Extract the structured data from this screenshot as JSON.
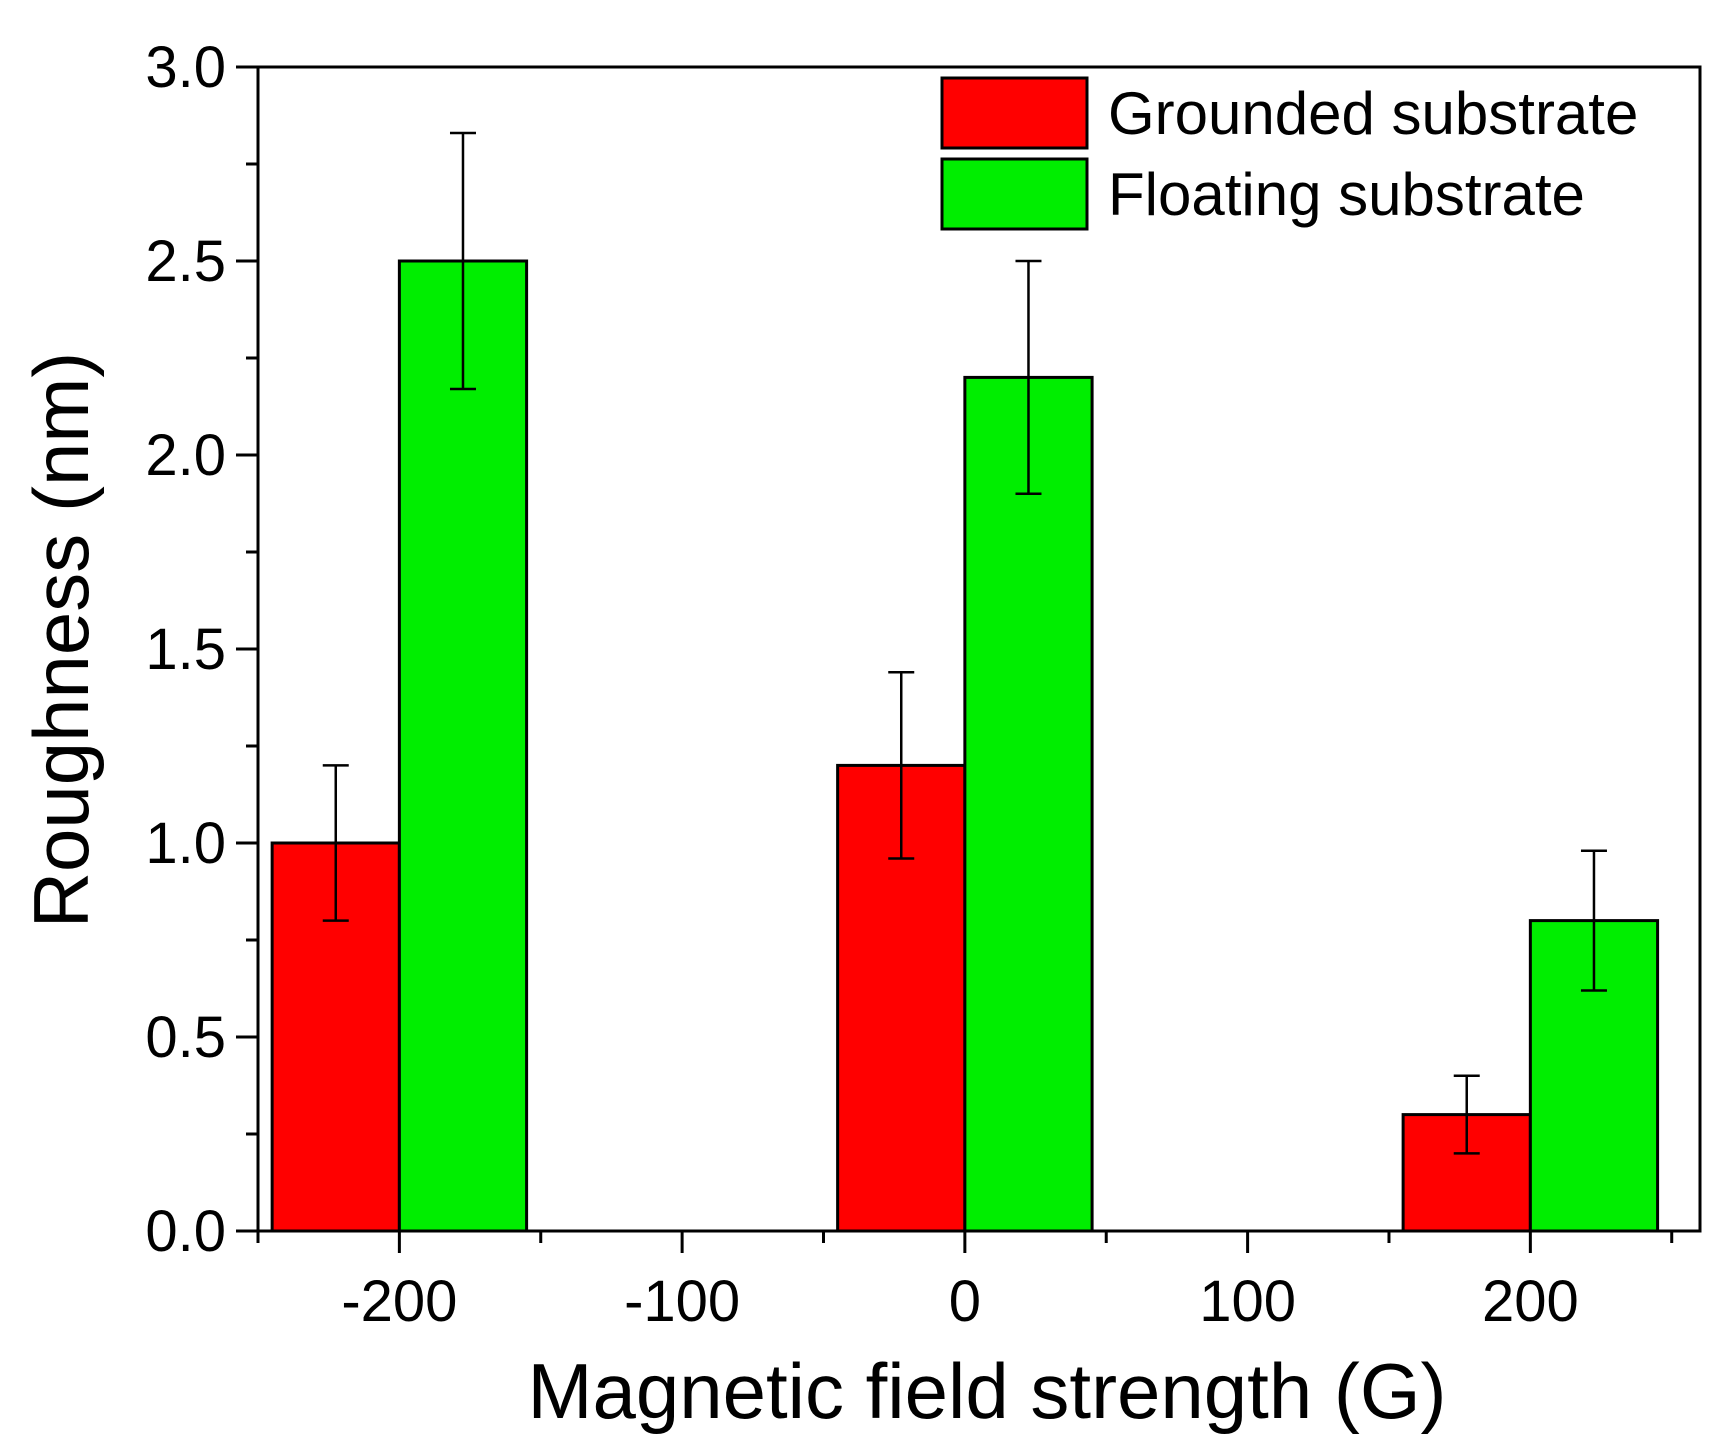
{
  "chart_data": {
    "type": "bar",
    "x": [
      -200,
      0,
      200
    ],
    "series": [
      {
        "name": "Grounded substrate",
        "color": "#ff0000",
        "values": [
          1.0,
          1.2,
          0.3
        ],
        "errors": [
          0.2,
          0.24,
          0.1
        ]
      },
      {
        "name": "Floating substrate",
        "color": "#00ee00",
        "values": [
          2.5,
          2.2,
          0.8
        ],
        "errors": [
          0.33,
          0.3,
          0.18
        ]
      }
    ],
    "xlabel": "Magnetic field strength (G)",
    "ylabel": "Roughness (nm)",
    "xlim": [
      -250,
      260
    ],
    "ylim": [
      0.0,
      3.0
    ],
    "xticks": [
      "-200",
      "-100",
      "0",
      "100",
      "200"
    ],
    "xtick_values": [
      -200,
      -100,
      0,
      100,
      200
    ],
    "xminor_values": [
      -250,
      -150,
      -50,
      50,
      150,
      250
    ],
    "yticks": [
      "0.0",
      "0.5",
      "1.0",
      "1.5",
      "2.0",
      "2.5",
      "3.0"
    ],
    "ytick_values": [
      0.0,
      0.5,
      1.0,
      1.5,
      2.0,
      2.5,
      3.0
    ],
    "yminor_values": [
      0.25,
      0.75,
      1.25,
      1.75,
      2.25,
      2.75
    ],
    "bar_width": 45,
    "grid": false,
    "legend": "top-right"
  }
}
